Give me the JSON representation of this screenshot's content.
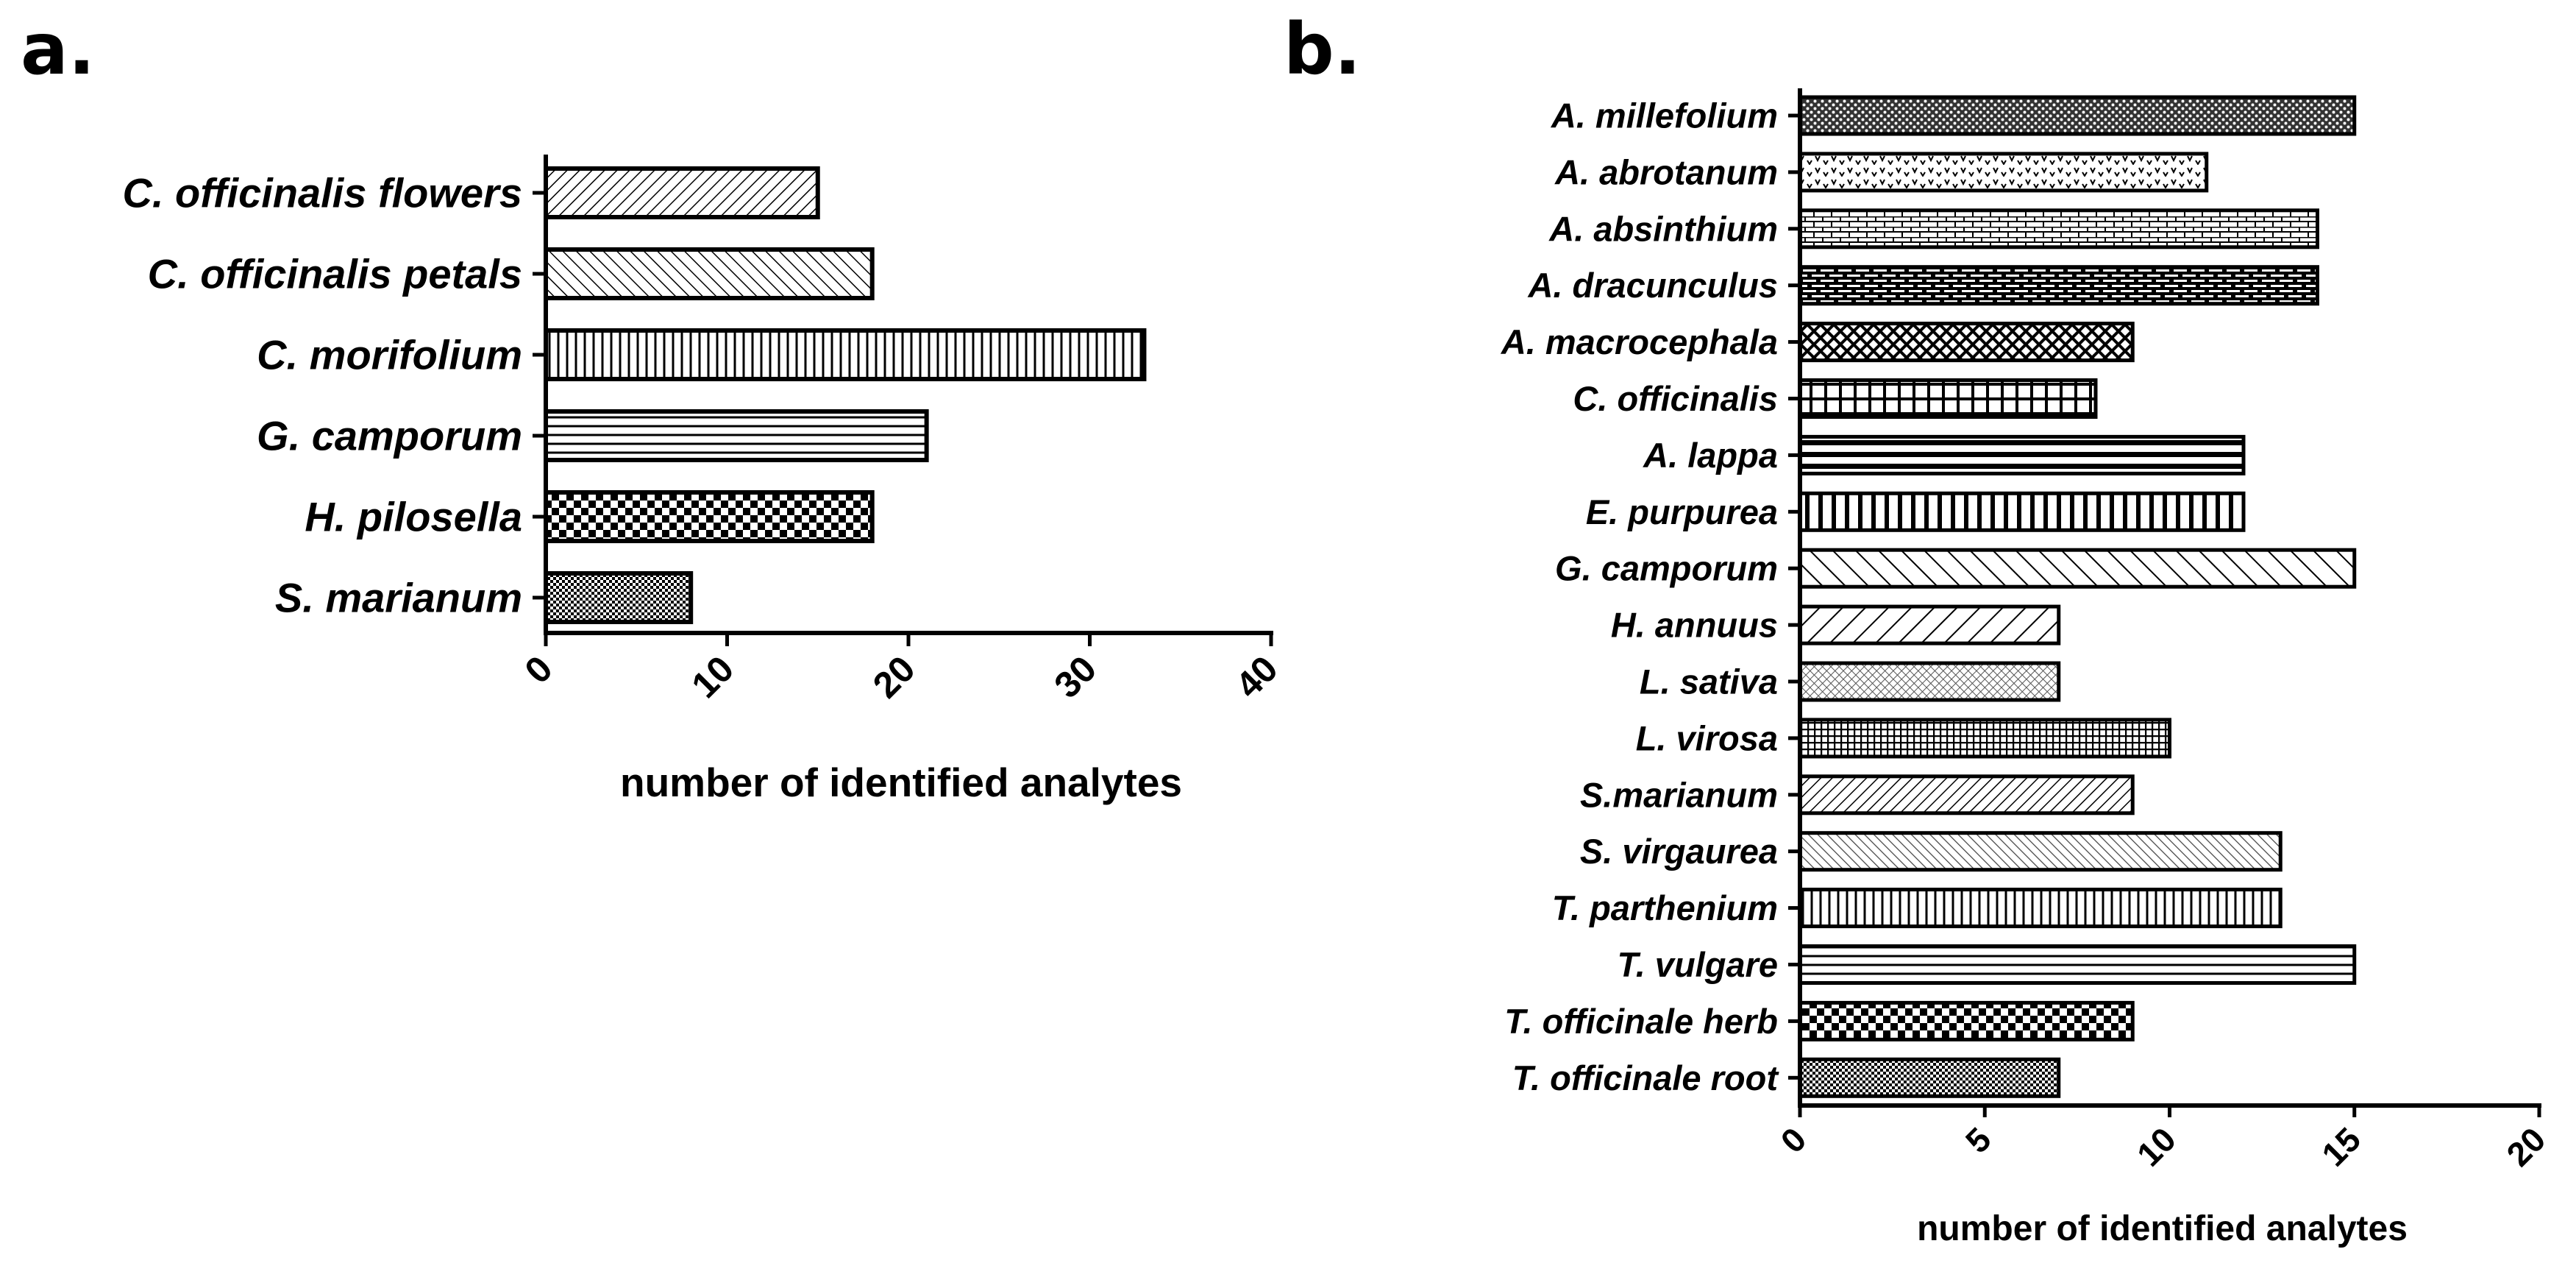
{
  "chart_data": [
    {
      "type": "bar",
      "orientation": "horizontal",
      "panel_label": "a.",
      "categories": [
        "C. officinalis flowers",
        "C. officinalis petals",
        "C. morifolium",
        "G. camporum",
        "H. pilosella",
        "S. marianum"
      ],
      "values": [
        15,
        18,
        33,
        21,
        18,
        8
      ],
      "patterns": [
        "diag-fine",
        "diag-up",
        "vertical",
        "horizontal",
        "checker",
        "dots"
      ],
      "title": "",
      "xlabel": "number of identified analytes",
      "ylabel": "",
      "xlim": [
        0,
        40
      ],
      "xticks": [
        0,
        10,
        20,
        30,
        40
      ],
      "grid": false
    },
    {
      "type": "bar",
      "orientation": "horizontal",
      "panel_label": "b.",
      "categories": [
        "A. millefolium",
        "A. abrotanum",
        "A. absinthium",
        "A. dracunculus",
        "A. macrocephala",
        "C. officinalis",
        "A. lappa",
        "E. purpurea",
        "G. camporum",
        "H. annuus",
        "L. sativa",
        "L. virosa",
        "S.marianum",
        "S. virgaurea",
        "T. parthenium",
        "T. vulgare",
        "T. officinale herb",
        "T. officinale root"
      ],
      "values": [
        15,
        11,
        14,
        14,
        9,
        8,
        12,
        12,
        15,
        7,
        7,
        10,
        9,
        13,
        13,
        15,
        9,
        7
      ],
      "patterns": [
        "dense-dots",
        "v-marks",
        "brick-light",
        "brick-dark",
        "diamond",
        "grid",
        "thick-horizontal",
        "thick-vertical",
        "diag-wide",
        "diag-down-wide",
        "crosshatch-fine",
        "grid-fine",
        "diag-down-fine",
        "diag-up-fine",
        "vertical",
        "horizontal",
        "checker",
        "dots"
      ],
      "title": "",
      "xlabel": "number of identified analytes",
      "ylabel": "",
      "xlim": [
        0,
        20
      ],
      "xticks": [
        0,
        5,
        10,
        15,
        20
      ],
      "grid": false
    }
  ]
}
